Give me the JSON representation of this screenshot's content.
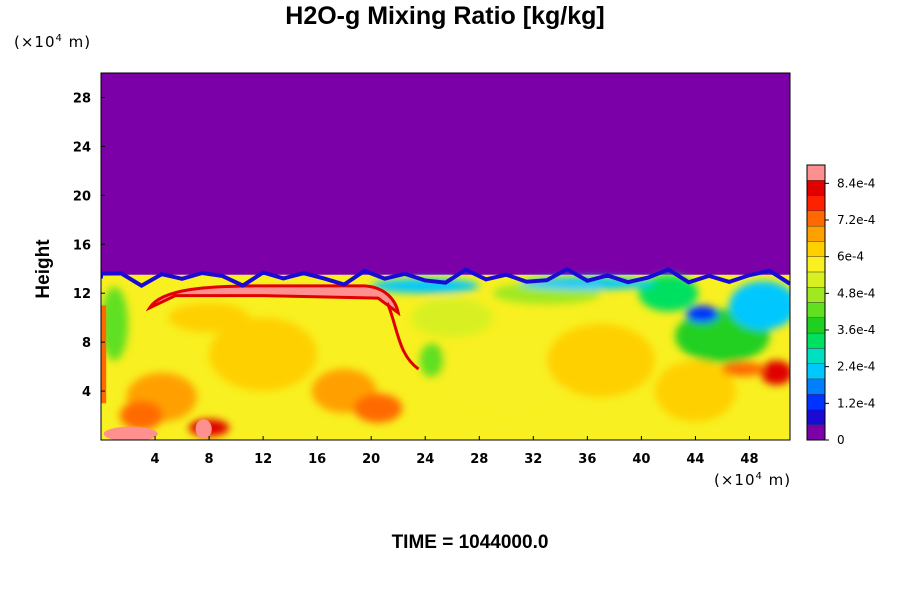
{
  "chart_data": {
    "type": "heatmap",
    "title": "H2O-g Mixing Ratio [kg/kg]",
    "ylabel": "Height",
    "y_unit": {
      "pre": "(×10",
      "exp": "4",
      "post": " m)"
    },
    "x_unit": {
      "pre": "(×10",
      "exp": "4",
      "post": " m)"
    },
    "footer": "TIME = 1044000.0",
    "xlim": [
      0,
      51
    ],
    "ylim": [
      0,
      30
    ],
    "x_ticks": [
      "4",
      "8",
      "12",
      "16",
      "20",
      "24",
      "28",
      "32",
      "36",
      "40",
      "44",
      "48"
    ],
    "y_ticks": [
      "4",
      "8",
      "12",
      "16",
      "20",
      "24",
      "28"
    ],
    "colorbar": {
      "min": 0,
      "max": 0.0009,
      "tick_labels": [
        "0",
        "1.2e-4",
        "2.4e-4",
        "3.6e-4",
        "4.8e-4",
        "6e-4",
        "7.2e-4",
        "8.4e-4"
      ],
      "tick_values": [
        0,
        0.00012,
        0.00024,
        0.00036,
        0.00048,
        0.0006,
        0.00072,
        0.00084
      ],
      "colors": [
        "#7b00a8",
        "#1a0ad6",
        "#0033ff",
        "#0080ff",
        "#00c8ff",
        "#00e0c0",
        "#00e060",
        "#20d020",
        "#60e020",
        "#a0e820",
        "#d8f020",
        "#f8f020",
        "#ffd000",
        "#ffa000",
        "#ff6a00",
        "#ff2000",
        "#e00000",
        "#ff9090"
      ]
    },
    "field_regions": [
      {
        "region": "dry upper layer",
        "x": [
          0,
          51
        ],
        "y": [
          13.5,
          30
        ],
        "value": 0
      },
      {
        "region": "moist boundary layer",
        "x": [
          0,
          51
        ],
        "y": [
          0,
          13.5
        ],
        "value_range": [
          0.0005,
          0.00065
        ]
      },
      {
        "region": "moist cap near top of layer",
        "x": [
          3.5,
          22
        ],
        "y": [
          10.5,
          12.5
        ],
        "value": 0.00088
      },
      {
        "region": "moist core",
        "x": [
          1.5,
          8
        ],
        "y": [
          1,
          6
        ],
        "value": 0.00068
      },
      {
        "region": "moist filament",
        "x": [
          16,
          23
        ],
        "y": [
          1.5,
          8
        ],
        "value": 0.00068
      },
      {
        "region": "drier eddies",
        "x": [
          40,
          51
        ],
        "y": [
          6,
          14
        ],
        "value_range": [
          0.0001,
          0.0004
        ]
      }
    ]
  }
}
